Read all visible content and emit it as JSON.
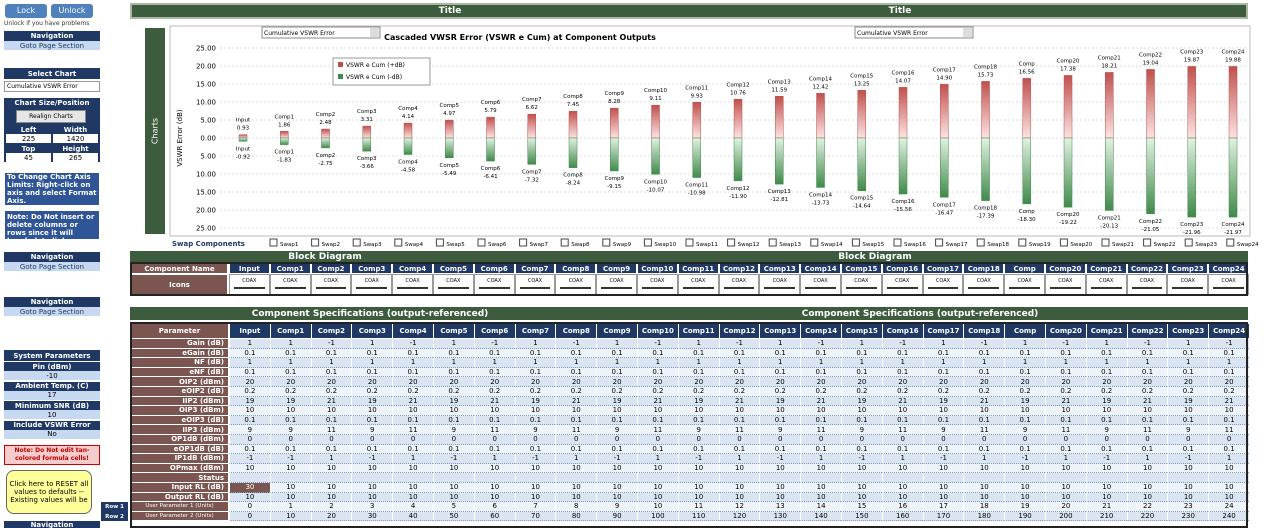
{
  "toolbar": {
    "lock": "Lock",
    "unlock": "Unlock",
    "hint": "Unlock if you have problems"
  },
  "sidebar": {
    "nav": [
      {
        "title": "Navigation",
        "link": "Goto Page Section"
      },
      {
        "title": "Navigation",
        "link": "Goto Page Section"
      },
      {
        "title": "Navigation",
        "link": "Goto Page Section"
      }
    ],
    "select_chart": {
      "title": "Select Chart",
      "value": "Cumulative VSWR Error"
    },
    "chart_size": {
      "title": "Chart Size/Position",
      "button": "Realign Charts",
      "fields": [
        {
          "label": "Left",
          "value": 225
        },
        {
          "label": "Width",
          "value": 1420
        },
        {
          "label": "Top",
          "value": 45
        },
        {
          "label": "Height",
          "value": 265
        }
      ]
    },
    "notes": [
      "To Change Chart Axis Limits: Right-click on axis and select Format Axis.",
      "Note: Do Not insert or delete columns or rows since it will break data links"
    ],
    "system": {
      "title": "System Parameters",
      "params": [
        {
          "label": "Pin (dBm)",
          "value": -10
        },
        {
          "label": "Ambient Temp. (C)",
          "value": 17
        },
        {
          "label": "Minimum SNR (dB)",
          "value": 10
        },
        {
          "label": "Include VSWR Error",
          "value": "No"
        }
      ]
    },
    "edit_note": "Note: Do Not edit tan-colored formula cells!",
    "reset": "Click here to RESET all values to defaults -- Existing values will be",
    "nav_bottom": "Navigation"
  },
  "title_bars": [
    "Title",
    "Title"
  ],
  "chart_data": {
    "type": "bar",
    "title": "Cascaded VWSR Error (VSWR e Cum) at Component Outputs",
    "dropdowns": [
      "Cumulative VSWR Error",
      "Cumulative VSWR Error"
    ],
    "side_label": "Charts",
    "ylabel": "VSWR Error (dB)",
    "categories": [
      "Input",
      "Comp1",
      "Comp2",
      "Comp3",
      "Comp4",
      "Comp5",
      "Comp6",
      "Comp7",
      "Comp8",
      "Comp9",
      "Comp10",
      "Comp11",
      "Comp12",
      "Comp13",
      "Comp14",
      "Comp15",
      "Comp16",
      "Comp17",
      "Comp18",
      "Comp",
      "Comp20",
      "Comp21",
      "Comp22",
      "Comp23",
      "Comp24"
    ],
    "series": [
      {
        "name": "VSWR e Cum (+dB)",
        "color": "#c0504d",
        "values": [
          0.93,
          1.86,
          2.48,
          3.31,
          4.14,
          4.97,
          5.79,
          6.62,
          7.45,
          8.28,
          9.11,
          9.93,
          10.76,
          11.59,
          12.42,
          13.25,
          14.07,
          14.9,
          15.73,
          16.56,
          17.38,
          18.21,
          19.04,
          19.87,
          19.88
        ],
        "value_labels": [
          "0.93",
          "1.86",
          "2.48",
          "3.31",
          "4.14",
          "4.97",
          "5.79",
          "6.62",
          "7.45",
          "8.28",
          "9.11",
          "9.93",
          "10.76",
          "11.59",
          "12.42",
          "13.25",
          "14.07",
          "14.90",
          "15.73",
          "16.56",
          "17.38",
          "18.21",
          "19.04",
          "19.87",
          "19.88"
        ]
      },
      {
        "name": "VSWR e Cum (-dB)",
        "color": "#3f8a4a",
        "values": [
          -0.92,
          -1.83,
          -2.75,
          -3.66,
          -4.58,
          -5.49,
          -6.41,
          -7.32,
          -8.24,
          -9.15,
          -10.07,
          -10.98,
          -11.9,
          -12.81,
          -13.73,
          -14.64,
          -15.56,
          -16.47,
          -17.39,
          -18.3,
          -19.22,
          -20.13,
          -21.05,
          -21.96,
          -21.97
        ],
        "value_labels": [
          "-0.92",
          "-1.83",
          "-2.75",
          "-3.66",
          "-4.58",
          "-5.49",
          "-6.41",
          "-7.32",
          "-8.24",
          "-9.15",
          "-10.07",
          "-10.98",
          "-11.90",
          "-12.81",
          "-13.73",
          "-14.64",
          "-15.56",
          "-16.47",
          "-17.39",
          "-18.30",
          "-19.22",
          "-20.13",
          "-21.05",
          "-21.96",
          "-21.97"
        ]
      }
    ],
    "ylim": [
      -25,
      25
    ],
    "yticks": [
      {
        "value": 25,
        "label": "25.00"
      },
      {
        "value": 20,
        "label": "20.00"
      },
      {
        "value": 15,
        "label": "15.00"
      },
      {
        "value": 10,
        "label": "10.00"
      },
      {
        "value": 5,
        "label": "5.00"
      },
      {
        "value": 0,
        "label": "0.00"
      },
      {
        "value": -5,
        "label": "5.00"
      },
      {
        "value": -10,
        "label": "10.00"
      },
      {
        "value": -15,
        "label": "15.00"
      },
      {
        "value": -20,
        "label": "20.00"
      },
      {
        "value": -25,
        "label": "25.00"
      }
    ],
    "grid": true
  },
  "swap": {
    "label": "Swap Components",
    "items": [
      "Swap1",
      "Swap2",
      "Swap3",
      "Swap4",
      "Swap5",
      "Swap6",
      "Swap7",
      "Swap8",
      "Swap9",
      "Swap10",
      "Swap11",
      "Swap12",
      "Swap13",
      "Swap14",
      "Swap15",
      "Swap16",
      "Swap17",
      "Swap18",
      "Swap19",
      "Swap20",
      "Swap21",
      "Swap22",
      "Swap23",
      "Swap24"
    ]
  },
  "block_diagram": {
    "titles": [
      "Block Diagram",
      "Block Diagram"
    ],
    "name_label": "Component Name",
    "icons_label": "Icons",
    "icons": [
      "COAX",
      "COAX",
      "COAX",
      "COAX",
      "COAX",
      "COAX",
      "COAX",
      "COAX",
      "COAX",
      "COAX",
      "COAX",
      "COAX",
      "COAX",
      "COAX",
      "COAX",
      "COAX",
      "COAX",
      "COAX",
      "COAX",
      "COAX",
      "COAX",
      "COAX",
      "COAX",
      "COAX",
      "COAX"
    ]
  },
  "specs": {
    "titles": [
      "Component Specifications (output-referenced)",
      "Component Specifications (output-referenced)"
    ],
    "header": "Parameter",
    "rows": [
      {
        "label": "Gain (dB)",
        "values": [
          1,
          1,
          -1,
          1,
          -1,
          1,
          -1,
          1,
          -1,
          1,
          -1,
          1,
          -1,
          1,
          -1,
          1,
          -1,
          1,
          -1,
          1,
          -1,
          1,
          -1,
          1,
          -1
        ]
      },
      {
        "label": "eGain (dB)",
        "values": [
          0.1,
          0.1,
          0.1,
          0.1,
          0.1,
          0.1,
          0.1,
          0.1,
          0.1,
          0.1,
          0.1,
          0.1,
          0.1,
          0.1,
          0.1,
          0.1,
          0.1,
          0.1,
          0.1,
          0.1,
          0.1,
          0.1,
          0.1,
          0.1,
          0.1
        ]
      },
      {
        "label": "NF (dB)",
        "values": [
          1,
          1,
          1,
          1,
          1,
          1,
          1,
          1,
          1,
          1,
          1,
          1,
          1,
          1,
          1,
          1,
          1,
          1,
          1,
          1,
          1,
          1,
          1,
          1,
          1
        ]
      },
      {
        "label": "eNF (dB)",
        "values": [
          0.1,
          0.1,
          0.1,
          0.1,
          0.1,
          0.1,
          0.1,
          0.1,
          0.1,
          0.1,
          0.1,
          0.1,
          0.1,
          0.1,
          0.1,
          0.1,
          0.1,
          0.1,
          0.1,
          0.1,
          0.1,
          0.1,
          0.1,
          0.1,
          0.1
        ]
      },
      {
        "label": "OIP2 (dBm)",
        "values": [
          20,
          20,
          20,
          20,
          20,
          20,
          20,
          20,
          20,
          20,
          20,
          20,
          20,
          20,
          20,
          20,
          20,
          20,
          20,
          20,
          20,
          20,
          20,
          20,
          20
        ]
      },
      {
        "label": "eOIP2 (dB)",
        "values": [
          0.2,
          0.2,
          0.2,
          0.2,
          0.2,
          0.2,
          0.2,
          0.2,
          0.2,
          0.2,
          0.2,
          0.2,
          0.2,
          0.2,
          0.2,
          0.2,
          0.2,
          0.2,
          0.2,
          0.2,
          0.2,
          0.2,
          0.2,
          0.2,
          0.2
        ]
      },
      {
        "label": "IIP2 (dBm)",
        "values": [
          19,
          19,
          21,
          19,
          21,
          19,
          21,
          19,
          21,
          19,
          21,
          19,
          21,
          19,
          21,
          19,
          21,
          19,
          21,
          19,
          21,
          19,
          21,
          19,
          21
        ]
      },
      {
        "label": "OIP3 (dBm)",
        "values": [
          10,
          10,
          10,
          10,
          10,
          10,
          10,
          10,
          10,
          10,
          10,
          10,
          10,
          10,
          10,
          10,
          10,
          10,
          10,
          10,
          10,
          10,
          10,
          10,
          10
        ]
      },
      {
        "label": "eOIP3 (dB)",
        "values": [
          0.1,
          0.1,
          0.1,
          0.1,
          0.1,
          0.1,
          0.1,
          0.1,
          0.1,
          0.1,
          0.1,
          0.1,
          0.1,
          0.1,
          0.1,
          0.1,
          0.1,
          0.1,
          0.1,
          0.1,
          0.1,
          0.1,
          0.1,
          0.1,
          0.1
        ]
      },
      {
        "label": "IIP3 (dBm)",
        "values": [
          9,
          9,
          11,
          9,
          11,
          9,
          11,
          9,
          11,
          9,
          11,
          9,
          11,
          9,
          11,
          9,
          11,
          9,
          11,
          9,
          11,
          9,
          11,
          9,
          11
        ]
      },
      {
        "label": "OP1dB (dBm)",
        "values": [
          0,
          0,
          0,
          0,
          0,
          0,
          0,
          0,
          0,
          0,
          0,
          0,
          0,
          0,
          0,
          0,
          0,
          0,
          0,
          0,
          0,
          0,
          0,
          0,
          0
        ]
      },
      {
        "label": "eOP1dB (dB)",
        "values": [
          0.1,
          0.1,
          0.1,
          0.1,
          0.1,
          0.1,
          0.1,
          0.1,
          0.1,
          0.1,
          0.1,
          0.1,
          0.1,
          0.1,
          0.1,
          0.1,
          0.1,
          0.1,
          0.1,
          0.1,
          0.1,
          0.1,
          0.1,
          0.1,
          0.1
        ]
      },
      {
        "label": "IP1dB (dBm)",
        "values": [
          -1,
          -1,
          1,
          -1,
          1,
          -1,
          1,
          -1,
          1,
          -1,
          1,
          -1,
          1,
          -1,
          1,
          -1,
          1,
          -1,
          1,
          -1,
          1,
          -1,
          1,
          -1,
          1
        ]
      },
      {
        "label": "OPmax (dBm)",
        "values": [
          10,
          10,
          10,
          10,
          10,
          10,
          10,
          10,
          10,
          10,
          10,
          10,
          10,
          10,
          10,
          10,
          10,
          10,
          10,
          10,
          10,
          10,
          10,
          10,
          10
        ]
      },
      {
        "label": "Status"
      },
      {
        "label": "Input RL (dB)",
        "values": [
          30,
          10,
          10,
          10,
          10,
          10,
          10,
          10,
          10,
          10,
          10,
          10,
          10,
          10,
          10,
          10,
          10,
          10,
          10,
          10,
          10,
          10,
          10,
          10,
          10
        ]
      },
      {
        "label": "Output RL (dB)",
        "values": [
          10,
          10,
          10,
          10,
          10,
          10,
          10,
          10,
          10,
          10,
          10,
          10,
          10,
          10,
          10,
          10,
          10,
          10,
          10,
          10,
          10,
          10,
          10,
          10,
          10
        ]
      },
      {
        "label": "Row 1",
        "sublabel": "User Parameter 1 (Units)",
        "values": [
          0,
          1,
          2,
          3,
          4,
          5,
          6,
          7,
          8,
          9,
          10,
          11,
          12,
          13,
          14,
          15,
          16,
          17,
          18,
          19,
          20,
          21,
          22,
          23,
          24
        ]
      },
      {
        "label": "Row 2",
        "sublabel": "User Parameter 2 (Units)",
        "values": [
          0,
          10,
          20,
          30,
          40,
          50,
          60,
          70,
          80,
          90,
          100,
          110,
          120,
          130,
          140,
          150,
          160,
          170,
          180,
          190,
          200,
          210,
          220,
          230,
          240
        ]
      }
    ]
  }
}
